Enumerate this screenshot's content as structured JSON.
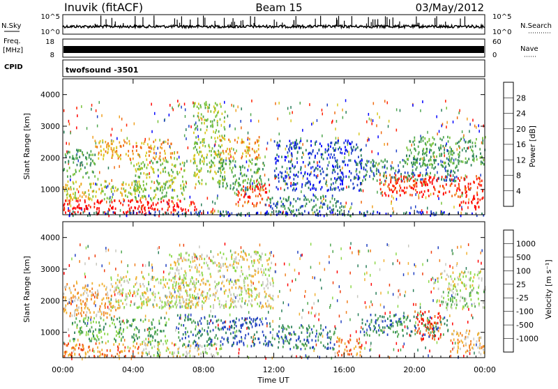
{
  "header": {
    "station": "Inuvik (fitACF)",
    "beam": "Beam 15",
    "date": "03/May/2012"
  },
  "strips": {
    "nsky_label": "N.Sky",
    "nsky_ticks": [
      "10^5",
      "10^0"
    ],
    "nsearch_label": "N.Search",
    "nsearch_ticks": [
      "10^5",
      "10^0"
    ],
    "freq_label_1": "Freq.",
    "freq_label_2": "[MHz]",
    "freq_ticks": [
      "18",
      "8"
    ],
    "nave_label": "Nave",
    "nave_ticks": [
      "60",
      "0"
    ],
    "cpid_label": "CPID",
    "cpid_value": "twofsound -3501"
  },
  "chart_data": [
    {
      "type": "heatmap",
      "name": "power",
      "ylabel": "Slant Range [km]",
      "yticks": [
        1000,
        2000,
        3000,
        4000
      ],
      "ylim": [
        200,
        4500
      ],
      "xlim": [
        0,
        24
      ],
      "colorbar_label": "Power [dB]",
      "colorbar_ticks": [
        "28",
        "24",
        "20",
        "16",
        "12",
        "8",
        "4"
      ],
      "colors": [
        "#0000ff",
        "#1f40c8",
        "#2a7f5a",
        "#4ea64e",
        "#78c23a",
        "#d8c820",
        "#f0a020",
        "#f06a10",
        "#ff2000",
        "#ff0000"
      ],
      "regions": [
        {
          "t0": 0.0,
          "t1": 7.6,
          "r0": 250,
          "r1": 700,
          "level": 9
        },
        {
          "t0": 0.0,
          "t1": 4.5,
          "r0": 700,
          "r1": 1300,
          "level": 5
        },
        {
          "t0": 0.0,
          "t1": 1.8,
          "r0": 1400,
          "r1": 2300,
          "level": 3
        },
        {
          "t0": 1.8,
          "t1": 6.5,
          "r0": 2000,
          "r1": 2600,
          "level": 6
        },
        {
          "t0": 4.0,
          "t1": 7.0,
          "r0": 700,
          "r1": 2000,
          "level": 4
        },
        {
          "t0": 7.4,
          "t1": 9.2,
          "r0": 1200,
          "r1": 3800,
          "level": 4
        },
        {
          "t0": 8.6,
          "t1": 11.2,
          "r0": 2000,
          "r1": 2700,
          "level": 6
        },
        {
          "t0": 8.8,
          "t1": 11.5,
          "r0": 1000,
          "r1": 2000,
          "level": 3
        },
        {
          "t0": 9.8,
          "t1": 11.8,
          "r0": 500,
          "r1": 1200,
          "level": 8
        },
        {
          "t0": 11.5,
          "t1": 16.0,
          "r0": 250,
          "r1": 850,
          "level": 2
        },
        {
          "t0": 12.0,
          "t1": 17.0,
          "r0": 1000,
          "r1": 2600,
          "level": 1
        },
        {
          "t0": 16.5,
          "t1": 22.5,
          "r0": 1300,
          "r1": 2000,
          "level": 2
        },
        {
          "t0": 18.0,
          "t1": 24.0,
          "r0": 800,
          "r1": 1500,
          "level": 8
        },
        {
          "t0": 19.5,
          "t1": 24.0,
          "r0": 1800,
          "r1": 2700,
          "level": 3
        },
        {
          "t0": 22.5,
          "t1": 24.0,
          "r0": 400,
          "r1": 800,
          "level": 9
        },
        {
          "t0": 0.0,
          "t1": 24.0,
          "r0": 200,
          "r1": 350,
          "level": 1
        }
      ]
    },
    {
      "type": "heatmap",
      "name": "velocity",
      "ylabel": "Slant Range [km]",
      "yticks": [
        1000,
        2000,
        3000,
        4000
      ],
      "ylim": [
        200,
        4500
      ],
      "xlim": [
        0,
        24
      ],
      "xticks": [
        "00:00",
        "04:00",
        "08:00",
        "12:00",
        "16:00",
        "20:00",
        "00:00"
      ],
      "xlabel": "Time UT",
      "colorbar_label": "Velocity [m s⁻¹]",
      "colorbar_ticks": [
        "1000",
        "500",
        "100",
        "25",
        "-25",
        "-100",
        "-500",
        "-1000"
      ],
      "colors": [
        "#2040c0",
        "#2a7f5a",
        "#4ea64e",
        "#8cd848",
        "#c8c8c0",
        "#f0b030",
        "#f08020",
        "#f04010",
        "#ff0000"
      ],
      "regions": [
        {
          "t0": 0.0,
          "t1": 4.5,
          "r0": 250,
          "r1": 700,
          "level": 6
        },
        {
          "t0": 0.5,
          "t1": 6.0,
          "r0": 700,
          "r1": 1500,
          "level": 2
        },
        {
          "t0": 0.0,
          "t1": 3.0,
          "r0": 1500,
          "r1": 2600,
          "level": 5
        },
        {
          "t0": 2.5,
          "t1": 7.5,
          "r0": 1800,
          "r1": 2800,
          "level": 4
        },
        {
          "t0": 6.0,
          "t1": 12.0,
          "r0": 1800,
          "r1": 3600,
          "level": 4
        },
        {
          "t0": 4.5,
          "t1": 9.0,
          "r0": 250,
          "r1": 700,
          "level": 4
        },
        {
          "t0": 6.5,
          "t1": 9.0,
          "r0": 600,
          "r1": 1600,
          "level": 1
        },
        {
          "t0": 9.0,
          "t1": 11.8,
          "r0": 600,
          "r1": 1500,
          "level": 0
        },
        {
          "t0": 11.8,
          "t1": 15.5,
          "r0": 500,
          "r1": 1300,
          "level": 1
        },
        {
          "t0": 15.5,
          "t1": 17.0,
          "r0": 300,
          "r1": 900,
          "level": 6
        },
        {
          "t0": 17.0,
          "t1": 22.0,
          "r0": 900,
          "r1": 1600,
          "level": 1
        },
        {
          "t0": 20.0,
          "t1": 21.5,
          "r0": 800,
          "r1": 1700,
          "level": 7
        },
        {
          "t0": 21.5,
          "t1": 24.0,
          "r0": 1800,
          "r1": 2400,
          "level": 3
        },
        {
          "t0": 22.0,
          "t1": 24.0,
          "r0": 400,
          "r1": 1100,
          "level": 5
        },
        {
          "t0": 21.0,
          "t1": 24.0,
          "r0": 2400,
          "r1": 3000,
          "level": 4
        }
      ]
    }
  ]
}
